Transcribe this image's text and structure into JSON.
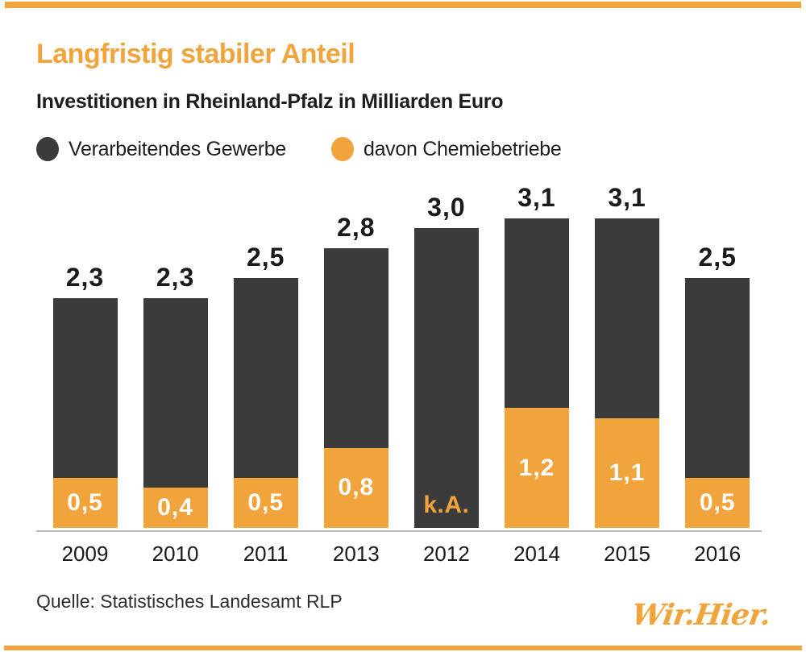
{
  "header": {
    "title": "Langfristig stabiler Anteil",
    "subtitle": "Investitionen in Rheinland-Pfalz in Milliarden Euro"
  },
  "legend": {
    "items": [
      {
        "label": "Verarbeitendes Gewerbe",
        "color": "#3b3b3b"
      },
      {
        "label": "davon Chemiebetriebe",
        "color": "#f2a43c"
      }
    ]
  },
  "chart_data": {
    "type": "bar",
    "subtype": "overlay-stacked",
    "title": "Langfristig stabiler Anteil",
    "subtitle": "Investitionen in Rheinland-Pfalz in Milliarden Euro",
    "unit": "Milliarden Euro",
    "categories": [
      "2009",
      "2010",
      "2011",
      "2013",
      "2012",
      "2014",
      "2015",
      "2016"
    ],
    "series": [
      {
        "name": "Verarbeitendes Gewerbe",
        "color": "#3b3b3b",
        "values": [
          2.3,
          2.3,
          2.5,
          2.8,
          3.0,
          3.1,
          3.1,
          2.5
        ],
        "labels": [
          "2,3",
          "2,3",
          "2,5",
          "2,8",
          "3,0",
          "3,1",
          "3,1",
          "2,5"
        ]
      },
      {
        "name": "davon Chemiebetriebe",
        "color": "#f2a43c",
        "values": [
          0.5,
          0.4,
          0.5,
          0.8,
          null,
          1.2,
          1.1,
          0.5
        ],
        "labels": [
          "0,5",
          "0,4",
          "0,5",
          "0,8",
          "k.A.",
          "1,2",
          "1,1",
          "0,5"
        ]
      }
    ],
    "no_data_label": "k.A.",
    "ylim": [
      0,
      3.5
    ],
    "grid": false,
    "legend_position": "top"
  },
  "footer": {
    "source": "Quelle: Statistisches Landesamt RLP",
    "logo": "Wir.Hier."
  },
  "colors": {
    "accent_orange": "#f2a43c",
    "bar_dark": "#3b3b3b"
  }
}
